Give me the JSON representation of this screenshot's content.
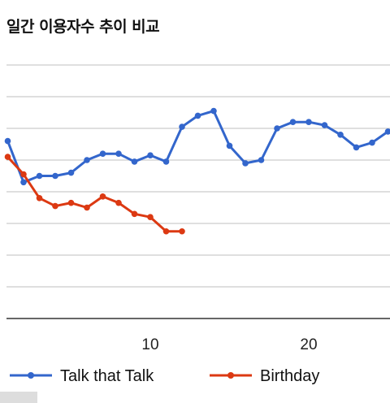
{
  "title": "일간 이용자수 추이 비교",
  "chart_data": {
    "type": "line",
    "title": "일간 이용자수 추이 비교",
    "xlabel": "",
    "ylabel": "",
    "x_ticks": [
      "10",
      "20"
    ],
    "xlim": [
      1,
      25
    ],
    "ylim": [
      0,
      8
    ],
    "grid": true,
    "legend_position": "bottom",
    "series": [
      {
        "name": "Talk that Talk",
        "color": "#3366cc",
        "x": [
          1,
          2,
          3,
          4,
          5,
          6,
          7,
          8,
          9,
          10,
          11,
          12,
          13,
          14,
          15,
          16,
          17,
          18,
          19,
          20,
          21,
          22,
          23,
          24,
          25
        ],
        "values": [
          5.6,
          4.3,
          4.5,
          4.5,
          4.6,
          5.0,
          5.2,
          5.2,
          4.95,
          5.15,
          4.95,
          6.05,
          6.4,
          6.55,
          5.45,
          4.9,
          5.0,
          6.0,
          6.2,
          6.2,
          6.1,
          5.8,
          5.4,
          5.55,
          5.9
        ]
      },
      {
        "name": "Birthday",
        "color": "#dc3912",
        "x": [
          1,
          2,
          3,
          4,
          5,
          6,
          7,
          8,
          9,
          10,
          11,
          12
        ],
        "values": [
          5.1,
          4.55,
          3.8,
          3.55,
          3.65,
          3.5,
          3.85,
          3.65,
          3.3,
          3.2,
          2.75,
          2.75
        ]
      }
    ]
  }
}
